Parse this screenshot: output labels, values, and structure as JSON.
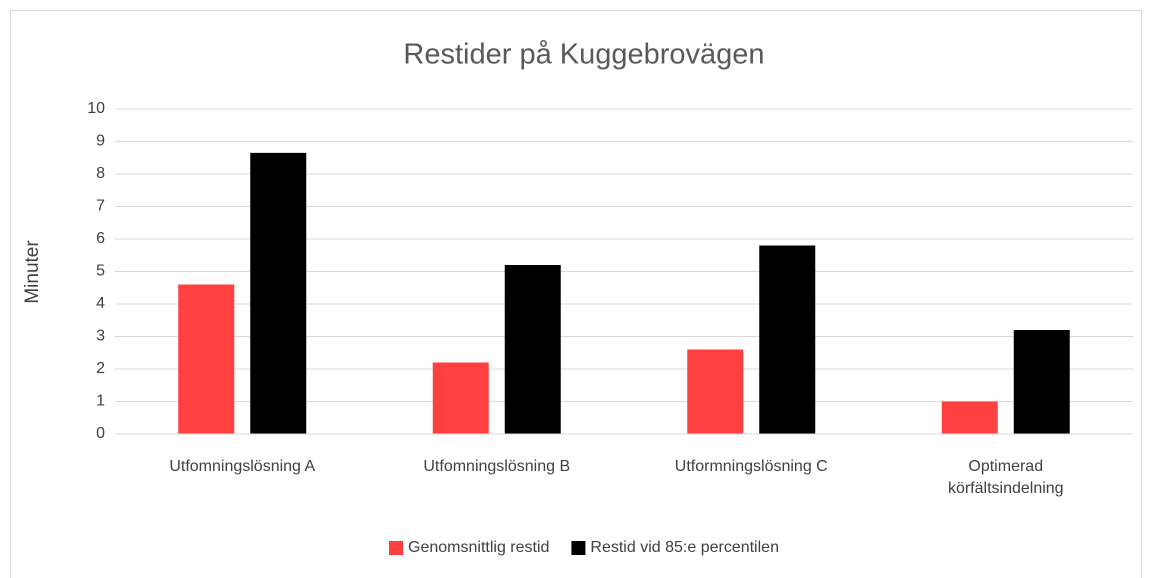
{
  "chart_data": {
    "type": "bar",
    "title": "Restider på Kuggebrovägen",
    "y_label": "Minuter",
    "categories": [
      "Utfomningslösning A",
      "Utfomningslösning B",
      "Utformningslösning C",
      "Optimerad körfältsindelning"
    ],
    "series": [
      {
        "name": "Genomsnittlig restid",
        "color": "#ff4040",
        "values": [
          4.6,
          2.2,
          2.6,
          1.0
        ]
      },
      {
        "name": "Restid vid 85:e percentilen",
        "color": "#000000",
        "values": [
          8.65,
          5.2,
          5.8,
          3.2
        ]
      }
    ],
    "ylim": [
      0,
      10
    ],
    "yticks": [
      0,
      1,
      2,
      3,
      4,
      5,
      6,
      7,
      8,
      9,
      10
    ],
    "grid": true,
    "legend": "bottom"
  }
}
